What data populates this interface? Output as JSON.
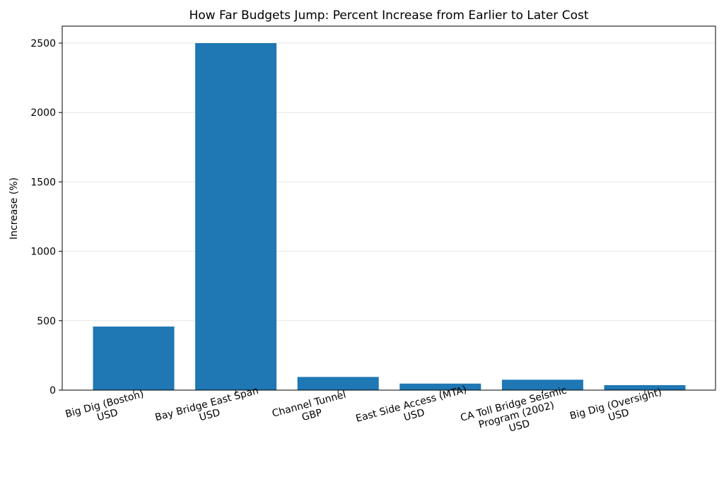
{
  "chart_data": {
    "type": "bar",
    "title": "How Far Budgets Jump: Percent Increase from Earlier to Later Cost",
    "xlabel": "",
    "ylabel": "Increase (%)",
    "categories": [
      "Big Dig (Boston)\nUSD",
      "Bay Bridge East Span\nUSD",
      "Channel Tunnel\nGBP",
      "East Side Access (MTA)\nUSD",
      "CA Toll Bridge Seismic\nProgram (2002)\nUSD",
      "Big Dig (Oversight)\nUSD"
    ],
    "values": [
      458,
      2500,
      95,
      47,
      75,
      36
    ],
    "ylim": [
      0,
      2625
    ],
    "yticks": [
      0,
      500,
      1000,
      1500,
      2000,
      2500
    ],
    "grid": "horizontal",
    "bar_color": "#1f77b4"
  }
}
